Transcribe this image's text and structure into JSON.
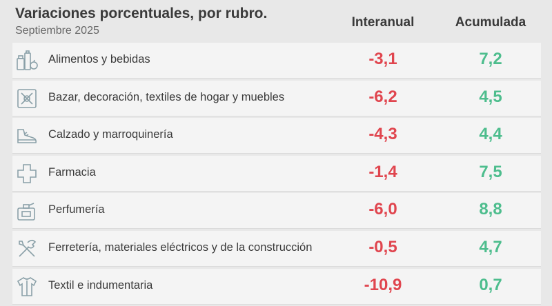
{
  "header": {
    "title": "Variaciones porcentuales, por rubro.",
    "subtitle": "Septiembre 2025",
    "col_interanual": "Interanual",
    "col_acumulada": "Acumulada"
  },
  "colors": {
    "negative": "#e0454e",
    "positive": "#4dbd8d",
    "row_bg": "#f4f4f4",
    "icon": "#8aa0a8"
  },
  "chart_data": {
    "type": "table",
    "title": "Variaciones porcentuales, por rubro.",
    "subtitle": "Septiembre 2025",
    "columns": [
      "Interanual",
      "Acumulada"
    ],
    "rows": [
      {
        "label": "Alimentos y bebidas",
        "icon": "grocery-icon",
        "interanual": "-3,1",
        "acumulada": "7,2"
      },
      {
        "label": "Bazar, decoración, textiles de hogar y muebles",
        "icon": "utensils-icon",
        "interanual": "-6,2",
        "acumulada": "4,5"
      },
      {
        "label": "Calzado y marroquinería",
        "icon": "shoe-icon",
        "interanual": "-4,3",
        "acumulada": "4,4"
      },
      {
        "label": "Farmacia",
        "icon": "cross-icon",
        "interanual": "-1,4",
        "acumulada": "7,5"
      },
      {
        "label": "Perfumería",
        "icon": "perfume-icon",
        "interanual": "-6,0",
        "acumulada": "8,8"
      },
      {
        "label": "Ferretería, materiales eléctricos y de la construcción",
        "icon": "tools-icon",
        "interanual": "-0,5",
        "acumulada": "4,7"
      },
      {
        "label": "Textil e indumentaria",
        "icon": "shirt-icon",
        "interanual": "-10,9",
        "acumulada": "0,7"
      }
    ]
  }
}
